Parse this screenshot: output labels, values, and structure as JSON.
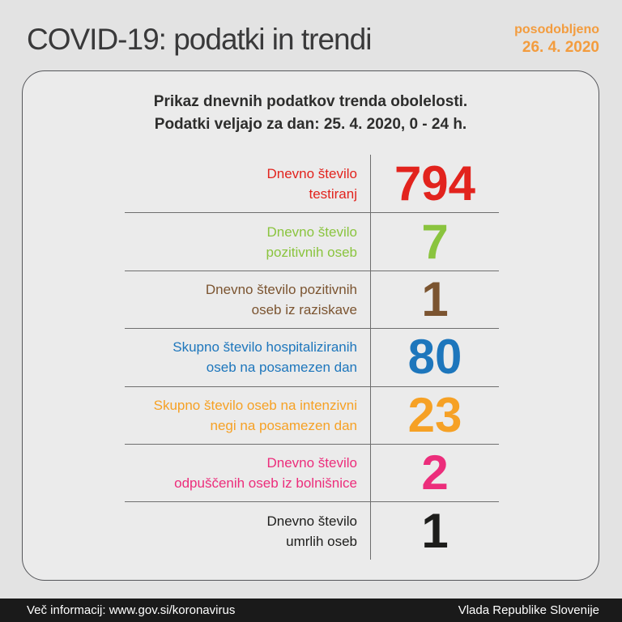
{
  "header": {
    "title": "COVID-19: podatki in trendi",
    "updated_label": "posodobljeno",
    "updated_date": "26. 4. 2020",
    "accent_color": "#f39c3e"
  },
  "card": {
    "title_line1": "Prikaz dnevnih podatkov trenda obolelosti.",
    "title_line2": "Podatki veljajo za dan: 25. 4. 2020, 0 - 24 h.",
    "rows": [
      {
        "label": "Dnevno število\ntestiranj",
        "value": "794",
        "color": "#e2231d"
      },
      {
        "label": "Dnevno število\npozitivnih oseb",
        "value": "7",
        "color": "#8ac43e"
      },
      {
        "label": "Dnevno število pozitivnih\noseb iz raziskave",
        "value": "1",
        "color": "#7b5430"
      },
      {
        "label": "Skupno število hospitaliziranih\noseb na posamezen dan",
        "value": "80",
        "color": "#1d76bc"
      },
      {
        "label": "Skupno število oseb na intenzivni\nnegi na posamezen dan",
        "value": "23",
        "color": "#f6a125"
      },
      {
        "label": "Dnevno število\nodpuščenih oseb iz bolnišnice",
        "value": "2",
        "color": "#ec2d7b"
      },
      {
        "label": "Dnevno število\numrlih oseb",
        "value": "1",
        "color": "#1d1d1b"
      }
    ]
  },
  "footer": {
    "left": "Več informacij: www.gov.si/koronavirus",
    "right": "Vlada Republike Slovenije",
    "background_color": "#1a1a1a"
  },
  "chart_data": {
    "type": "table",
    "title": "Prikaz dnevnih podatkov trenda obolelosti.",
    "subtitle": "Podatki veljajo za dan: 25. 4. 2020, 0 - 24 h.",
    "updated": "26. 4. 2020",
    "categories": [
      "Dnevno število testiranj",
      "Dnevno število pozitivnih oseb",
      "Dnevno število pozitivnih oseb iz raziskave",
      "Skupno število hospitaliziranih oseb na posamezen dan",
      "Skupno število oseb na intenzivni negi na posamezen dan",
      "Dnevno število odpuščenih oseb iz bolnišnice",
      "Dnevno število umrlih oseb"
    ],
    "values": [
      794,
      7,
      1,
      80,
      23,
      2,
      1
    ],
    "colors": [
      "#e2231d",
      "#8ac43e",
      "#7b5430",
      "#1d76bc",
      "#f6a125",
      "#ec2d7b",
      "#1d1d1b"
    ]
  }
}
